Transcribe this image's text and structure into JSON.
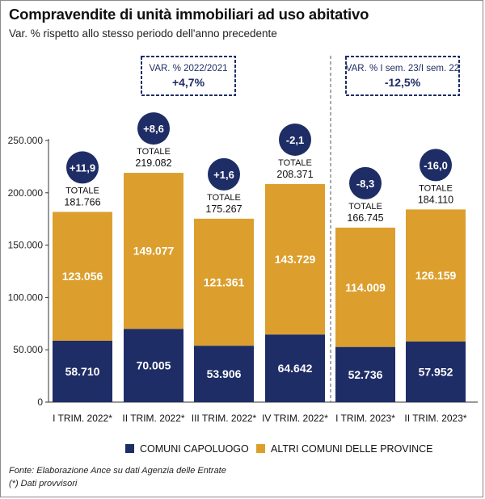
{
  "title": "Compravendite di unità immobiliari ad uso abitativo",
  "subtitle": "Var. % rispetto allo stesso periodo dell'anno precedente",
  "footnotes": {
    "source": "Fonte: Elaborazione Ance su dati Agenzia delle Entrate",
    "note": "(*) Dati provvisori"
  },
  "colors": {
    "capoluogo": "#1f2d66",
    "altri": "#dc9f2e",
    "circle": "#1f2d66",
    "box_border": "#1f2d66",
    "box_text": "#1f2d66",
    "axis": "#333333"
  },
  "chart_data": {
    "type": "bar",
    "stacked": true,
    "categories": [
      "I TRIM. 2022*",
      "II TRIM. 2022*",
      "III TRIM. 2022*",
      "IV TRIM. 2022*",
      "I TRIM. 2023*",
      "II TRIM. 2023*"
    ],
    "series": [
      {
        "name": "COMUNI CAPOLUOGO",
        "values": [
          58710,
          70005,
          53906,
          64642,
          52736,
          57952
        ],
        "labels": [
          "58.710",
          "70.005",
          "53.906",
          "64.642",
          "52.736",
          "57.952"
        ]
      },
      {
        "name": "ALTRI COMUNI DELLE PROVINCE",
        "values": [
          123056,
          149077,
          121361,
          143729,
          114009,
          126159
        ],
        "labels": [
          "123.056",
          "149.077",
          "121.361",
          "143.729",
          "114.009",
          "126.159"
        ]
      }
    ],
    "totals_label": "TOTALE",
    "totals": [
      181766,
      219082,
      175267,
      208371,
      166745,
      184110
    ],
    "totals_text": [
      "181.766",
      "219.082",
      "175.267",
      "208.371",
      "166.745",
      "184.110"
    ],
    "variations": [
      "+11,9",
      "+8,6",
      "+1,6",
      "-2,1",
      "-8,3",
      "-16,0"
    ],
    "ylim": [
      0,
      250000
    ],
    "yticks": [
      0,
      50000,
      100000,
      150000,
      200000,
      250000
    ],
    "ytick_labels": [
      "0",
      "50.000",
      "100.000",
      "150.000",
      "200.000",
      "250.000"
    ],
    "annual_boxes": [
      {
        "label": "VAR. % 2022/2021",
        "value": "+4,7%",
        "group": [
          0,
          3
        ]
      },
      {
        "label": "VAR. % I sem. 23/I sem. 22",
        "value": "-12,5%",
        "group": [
          4,
          5
        ]
      }
    ],
    "legend_position": "bottom"
  }
}
